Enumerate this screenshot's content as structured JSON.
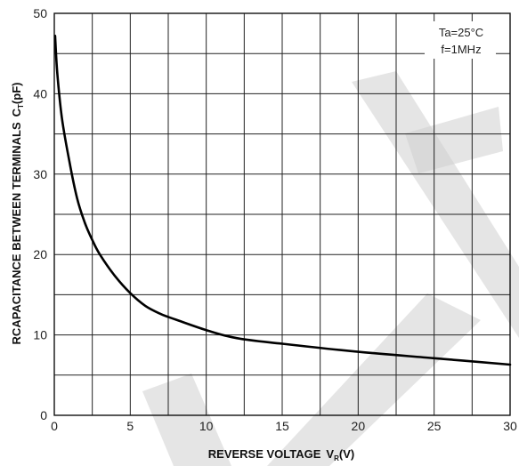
{
  "chart_data": {
    "type": "line",
    "xlabel": "REVERSE VOLTAGE",
    "xlabel_symbol": "V",
    "xlabel_subscript": "R",
    "xlabel_unit": "(V)",
    "ylabel": "RCAPACITANCE BETWEEN TERMINALS",
    "ylabel_symbol": "C",
    "ylabel_subscript": "T",
    "ylabel_unit": "(pF)",
    "xlim": [
      0,
      30
    ],
    "ylim": [
      0,
      50
    ],
    "x_ticks": [
      0,
      5,
      10,
      15,
      20,
      25,
      30
    ],
    "y_ticks": [
      0,
      10,
      20,
      30,
      40,
      50
    ],
    "x_grid_step": 2.5,
    "y_grid_step": 5,
    "grid": true,
    "annotations": [
      "Ta=25°C",
      "f=1MHz"
    ],
    "series": [
      {
        "x": [
          0.05,
          0.2,
          0.5,
          1,
          1.5,
          2,
          2.5,
          3,
          4,
          5,
          6,
          7,
          8,
          10,
          12,
          15,
          20,
          25,
          30
        ],
        "values": [
          47.2,
          42.5,
          37,
          31.5,
          27,
          24,
          21.8,
          20,
          17.3,
          15.2,
          13.6,
          12.6,
          11.9,
          10.6,
          9.6,
          8.9,
          7.9,
          7.1,
          6.3
        ]
      }
    ]
  }
}
